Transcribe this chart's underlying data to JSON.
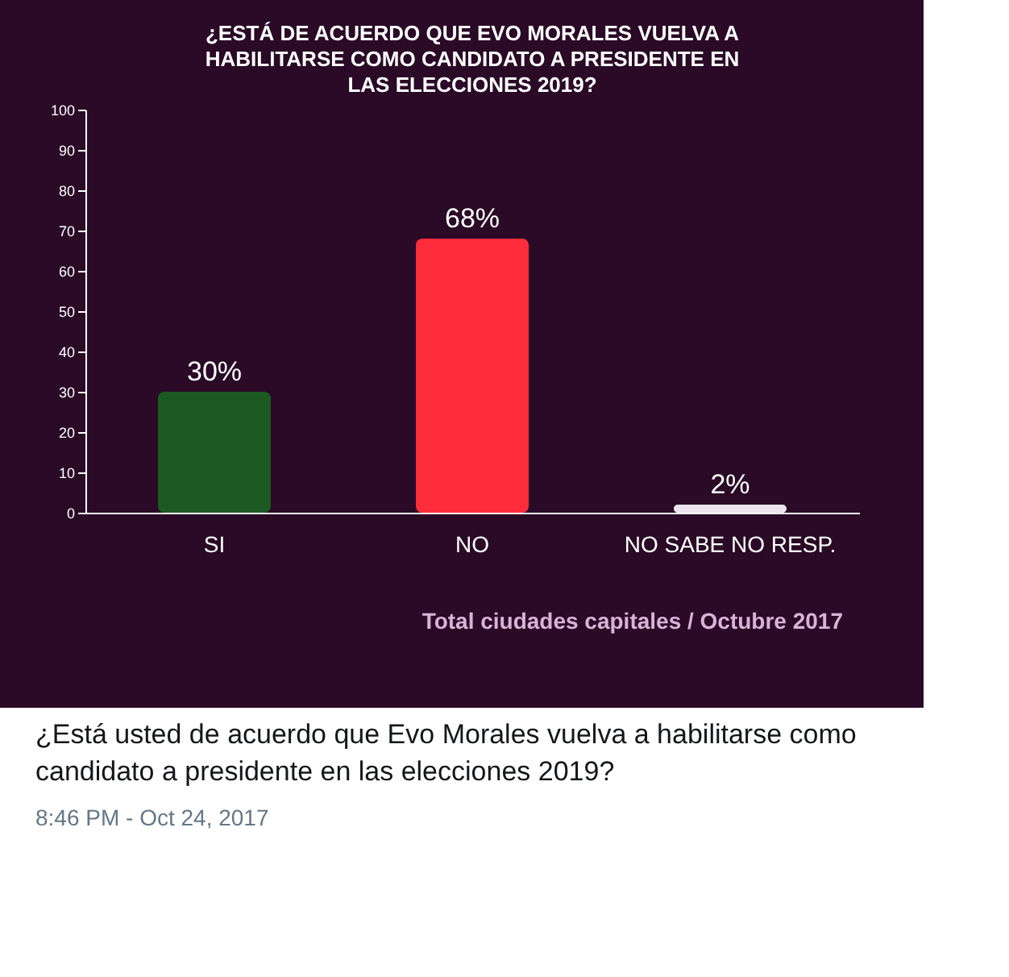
{
  "chart_data": {
    "type": "bar",
    "title": "¿ESTÁ DE ACUERDO QUE EVO MORALES VUELVA A HABILITARSE COMO CANDIDATO A PRESIDENTE EN LAS ELECCIONES 2019?",
    "categories": [
      "SI",
      "NO",
      "NO SABE NO RESP."
    ],
    "values": [
      30,
      68,
      2
    ],
    "colors": [
      "#1c5a22",
      "#ff2d3c",
      "#ece4ec"
    ],
    "value_labels": [
      "30%",
      "68%",
      "2%"
    ],
    "ylim": [
      0,
      100
    ],
    "yticks": [
      0,
      10,
      20,
      30,
      40,
      50,
      60,
      70,
      80,
      90,
      100
    ],
    "grid": false,
    "legend": false,
    "annotations": [
      "Total ciudades capitales / Octubre 2017",
      "¿Está usted de acuerdo que Evo Morales vuelva a habilitarse como candidato a presidente en las elecciones 2019?",
      "8:46 PM - Oct 24, 2017"
    ]
  }
}
